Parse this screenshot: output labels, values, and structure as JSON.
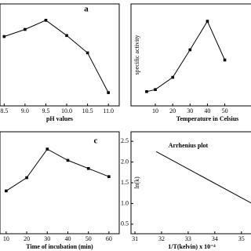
{
  "chart_data": [
    {
      "type": "line",
      "title": "a",
      "xlabel": "pH values",
      "color": "#000000",
      "x": [
        8.5,
        9.0,
        9.5,
        10.0,
        10.5,
        11.0
      ],
      "values": [
        68,
        75,
        84,
        69,
        52,
        13
      ],
      "xlim": [
        8.4,
        11.26
      ],
      "ylim": [
        0,
        100
      ],
      "xticks": [
        8.5,
        {
          "value": 9,
          "label": "9.0"
        },
        9.5,
        {
          "value": 10,
          "label": "10.0"
        },
        10.5,
        {
          "value": 11,
          "label": "11.0"
        }
      ]
    },
    {
      "type": "line",
      "xlabel": "Temperature in Celsius",
      "ylabel": "specific activity",
      "color": "#000000",
      "x": [
        5,
        10,
        20,
        30,
        40,
        50
      ],
      "values": [
        1.4,
        1.6,
        2.8,
        5.5,
        8.3,
        4.5
      ],
      "xlim": [
        -4,
        66
      ],
      "ylim": [
        0,
        10
      ],
      "xticks": [
        10,
        20,
        30,
        40,
        50
      ]
    },
    {
      "type": "line",
      "title": "c",
      "xlabel": "Time of incubation (min)",
      "color": "#000000",
      "x": [
        10,
        20,
        30,
        40,
        50,
        60
      ],
      "values": [
        42,
        55,
        83,
        72,
        64,
        56
      ],
      "xlim": [
        7,
        65
      ],
      "ylim": [
        0,
        100
      ],
      "xticks": [
        10,
        20,
        30,
        40,
        50,
        60
      ]
    },
    {
      "type": "line",
      "title": "Arrhenius plot",
      "xlabel": "1/T(kelvin)  x 10⁻⁴",
      "ylabel": "ln(k)",
      "color": "#000000",
      "markers": false,
      "x": [
        31.8,
        35.4
      ],
      "values": [
        2.25,
        1.0
      ],
      "xlim": [
        30.85,
        35.42
      ],
      "ylim": [
        0.27,
        2.73
      ],
      "xticks": [
        31,
        32,
        33,
        34,
        35
      ],
      "yticks": [
        2.5,
        {
          "value": 2,
          "label": "2.0"
        },
        1.5,
        {
          "value": 1,
          "label": "1.0"
        },
        0.5
      ]
    }
  ]
}
